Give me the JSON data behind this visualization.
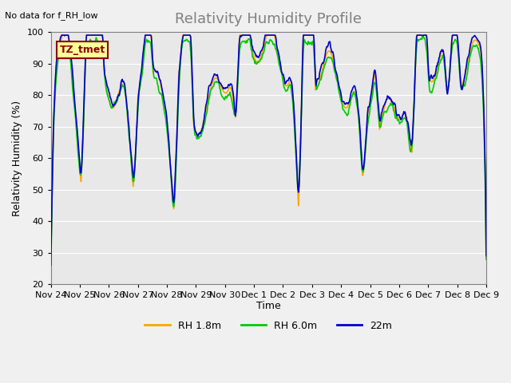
{
  "title": "Relativity Humidity Profile",
  "note": "No data for f_RH_low",
  "ylabel": "Relativity Humidity (%)",
  "xlabel": "Time",
  "ylim": [
    20,
    100
  ],
  "yticks": [
    20,
    30,
    40,
    50,
    60,
    70,
    80,
    90,
    100
  ],
  "xtick_labels": [
    "Nov 24",
    "Nov 25",
    "Nov 26",
    "Nov 27",
    "Nov 28",
    "Nov 29",
    "Nov 30",
    "Dec 1",
    "Dec 2",
    "Dec 3",
    "Dec 4",
    "Dec 5",
    "Dec 6",
    "Dec 7",
    "Dec 8",
    "Dec 9"
  ],
  "legend_labels": [
    "RH 1.8m",
    "RH 6.0m",
    "22m"
  ],
  "colors": [
    "#FFA500",
    "#00CC00",
    "#0000CC"
  ],
  "line_width": 1.2,
  "bg_color": "#E8E8E8",
  "fig_color": "#F0F0F0",
  "tz_label": "TZ_tmet",
  "tz_box_color": "#FFFF99",
  "tz_border_color": "#8B0000"
}
